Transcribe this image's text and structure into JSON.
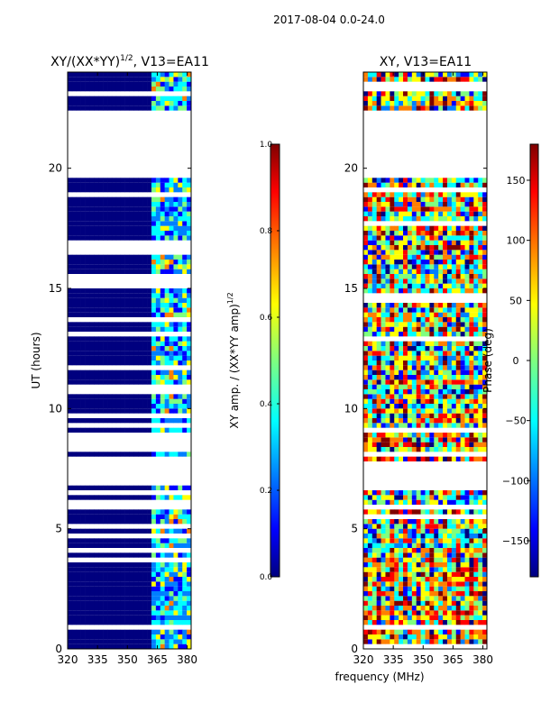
{
  "suptitle": "2017-08-04 0.0-24.0",
  "chart_data": [
    {
      "type": "heatmap",
      "title": "XY/(XX*YY)",
      "title_exponent": "1/2",
      "title_suffix": ", V13=EA11",
      "xlabel": "",
      "ylabel": "UT (hours)",
      "xlim": [
        320,
        382
      ],
      "ylim": [
        0,
        24
      ],
      "x_ticks": [
        320,
        335,
        350,
        365,
        380
      ],
      "y_ticks": [
        0,
        5,
        10,
        15,
        20
      ],
      "empty_bands_hours": [
        [
          6.9,
          7.7
        ],
        [
          19.6,
          22.4
        ]
      ],
      "noise_channels_mhz": [
        [
          362,
          382
        ]
      ],
      "colorbar": {
        "label": "XY amp. / (XX*YY amp)",
        "label_exponent": "1/2",
        "range": [
          0.0,
          1.0
        ],
        "ticks": [
          "0.0",
          "0.2",
          "0.4",
          "0.6",
          "0.8",
          "1.0"
        ],
        "colormap": "jet"
      }
    },
    {
      "type": "heatmap",
      "title": "XY, V13=EA11",
      "xlabel": "frequency (MHz)",
      "ylabel": "",
      "xlim": [
        320,
        382
      ],
      "ylim": [
        0,
        24
      ],
      "x_ticks": [
        320,
        335,
        350,
        365,
        380
      ],
      "y_ticks": [
        0,
        5,
        10,
        15,
        20
      ],
      "empty_bands_hours": [
        [
          6.9,
          7.7
        ],
        [
          19.6,
          22.4
        ]
      ],
      "colorbar": {
        "label": "Phase (deg)",
        "range": [
          -180,
          180
        ],
        "ticks": [
          "−150",
          "−100",
          "−50",
          "0",
          "50",
          "100",
          "150"
        ],
        "colormap": "jet"
      }
    }
  ],
  "colors": {
    "jet": [
      "#00007f",
      "#0000ff",
      "#007fff",
      "#00ffff",
      "#7fff7f",
      "#ffff00",
      "#ff7f00",
      "#ff0000",
      "#7f0000"
    ]
  }
}
